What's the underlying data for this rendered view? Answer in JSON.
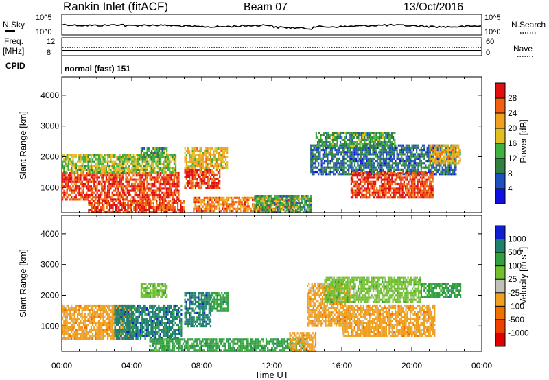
{
  "header": {
    "station": "Rankin Inlet (fitACF)",
    "beam": "Beam 07",
    "date": "13/Oct/2016"
  },
  "noise_panel": {
    "left_label": "N.Sky",
    "right_label": "N.Search",
    "left_ticks": [
      "10^5",
      "10^0"
    ],
    "right_ticks": [
      "10^5",
      "10^0"
    ]
  },
  "freq_panel": {
    "left_label_1": "Freq.",
    "left_label_2": "[MHz]",
    "left_ticks": [
      "12",
      "8"
    ],
    "right_label": "Nave",
    "right_ticks": [
      "60",
      "0"
    ]
  },
  "cpid_panel": {
    "label": "CPID",
    "text": "normal (fast) 151"
  },
  "colors": {
    "power_scale": [
      "#1010e0",
      "#2050c0",
      "#308040",
      "#40b040",
      "#e0c020",
      "#f0a020",
      "#f06010",
      "#e01010"
    ],
    "velocity_scale": [
      "#e00000",
      "#f04000",
      "#f07000",
      "#f0a020",
      "#c0c0b8",
      "#70c030",
      "#30a040",
      "#208070",
      "#1020d0"
    ]
  },
  "chart_data": [
    {
      "type": "heatmap",
      "title": "Power",
      "xlabel": "",
      "ylabel": "Slant Range [km]",
      "yticks": [
        "1000",
        "2000",
        "3000",
        "4000"
      ],
      "ylim": [
        180,
        4600
      ],
      "colorbar_label": "Power [dB]",
      "colorbar_ticks": [
        "4",
        "8",
        "12",
        "16",
        "20",
        "24",
        "28"
      ],
      "colorbar_range": [
        0,
        32
      ],
      "regions": [
        {
          "t0": 0.0,
          "t1": 6.7,
          "r0": 600,
          "r1": 1500,
          "value": 28
        },
        {
          "t0": 0.0,
          "t1": 6.5,
          "r0": 1500,
          "r1": 2100,
          "value": 16
        },
        {
          "t0": 1.5,
          "t1": 7.0,
          "r0": 200,
          "r1": 600,
          "value": 28
        },
        {
          "t0": 7.0,
          "t1": 9.0,
          "r0": 1000,
          "r1": 1600,
          "value": 28
        },
        {
          "t0": 7.0,
          "t1": 9.5,
          "r0": 1600,
          "r1": 2300,
          "value": 20
        },
        {
          "t0": 7.5,
          "t1": 13.5,
          "r0": 200,
          "r1": 700,
          "value": 24
        },
        {
          "t0": 11.0,
          "t1": 14.2,
          "r0": 200,
          "r1": 750,
          "value": 12
        },
        {
          "t0": 4.5,
          "t1": 6.0,
          "r0": 2000,
          "r1": 2300,
          "value": 12
        },
        {
          "t0": 14.2,
          "t1": 22.5,
          "r0": 1400,
          "r1": 2400,
          "value": 8
        },
        {
          "t0": 16.5,
          "t1": 21.2,
          "r0": 650,
          "r1": 1500,
          "value": 28
        },
        {
          "t0": 14.5,
          "t1": 19.0,
          "r0": 2300,
          "r1": 2800,
          "value": 12
        },
        {
          "t0": 21.0,
          "t1": 22.8,
          "r0": 1800,
          "r1": 2400,
          "value": 20
        }
      ]
    },
    {
      "type": "heatmap",
      "title": "Velocity",
      "xlabel": "Time UT",
      "ylabel": "Slant Range [km]",
      "yticks": [
        "1000",
        "2000",
        "3000",
        "4000"
      ],
      "ylim": [
        180,
        4600
      ],
      "xticks": [
        "00:00",
        "04:00",
        "08:00",
        "12:00",
        "16:00",
        "20:00",
        "00:00"
      ],
      "xlim": [
        0,
        24
      ],
      "colorbar_label": "Velocity [m s^-1]",
      "colorbar_ticks": [
        "1000",
        "500",
        "100",
        "25",
        "-25",
        "-100",
        "-500",
        "-1000"
      ],
      "regions": [
        {
          "t0": 0.0,
          "t1": 4.0,
          "r0": 600,
          "r1": 1700,
          "value": -100
        },
        {
          "t0": 3.0,
          "t1": 6.8,
          "r0": 600,
          "r1": 1700,
          "value": 500
        },
        {
          "t0": 4.5,
          "t1": 6.0,
          "r0": 1900,
          "r1": 2400,
          "value": 25
        },
        {
          "t0": 7.0,
          "t1": 8.5,
          "r0": 1000,
          "r1": 2100,
          "value": 500
        },
        {
          "t0": 8.5,
          "t1": 9.5,
          "r0": 1500,
          "r1": 2100,
          "value": 100
        },
        {
          "t0": 5.0,
          "t1": 14.0,
          "r0": 200,
          "r1": 600,
          "value": 100
        },
        {
          "t0": 13.0,
          "t1": 14.5,
          "r0": 200,
          "r1": 800,
          "value": -100
        },
        {
          "t0": 14.0,
          "t1": 16.5,
          "r0": 1000,
          "r1": 2400,
          "value": -100
        },
        {
          "t0": 16.0,
          "t1": 21.3,
          "r0": 650,
          "r1": 1700,
          "value": -100
        },
        {
          "t0": 15.0,
          "t1": 20.5,
          "r0": 1800,
          "r1": 2600,
          "value": 25
        },
        {
          "t0": 20.5,
          "t1": 22.8,
          "r0": 1900,
          "r1": 2400,
          "value": 100
        }
      ]
    }
  ]
}
